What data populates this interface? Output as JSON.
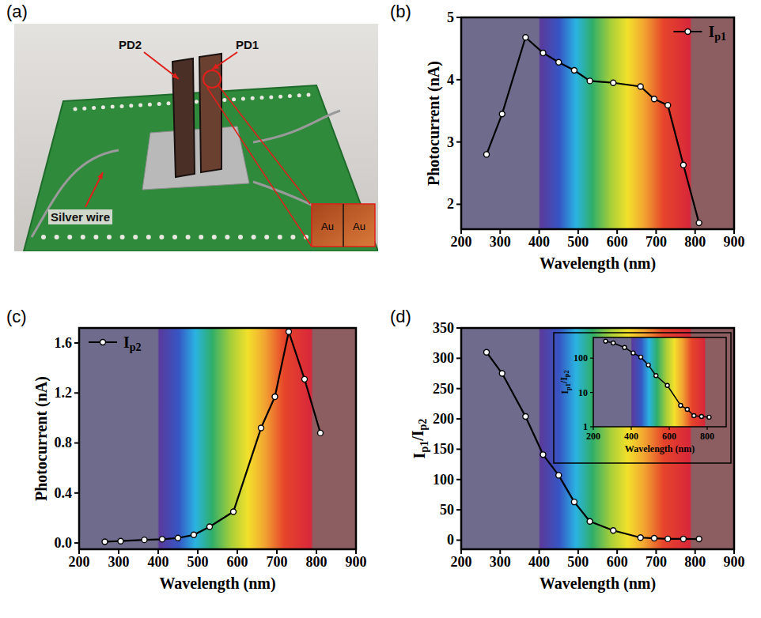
{
  "photo": {
    "panel_label": "(a)",
    "pd2": "PD2",
    "pd1": "PD1",
    "wire_label": "Silver wire",
    "inset_labels": [
      "Au",
      "Au"
    ]
  },
  "chart_data": [
    {
      "type": "line",
      "panel_label": "(b)",
      "x_label": "Wavelength (nm)",
      "y_label": "Photocurrent (nA)",
      "x": [
        265,
        305,
        365,
        410,
        450,
        490,
        530,
        590,
        660,
        695,
        730,
        770,
        810
      ],
      "series": [
        {
          "name": "Ip1",
          "color": "#000000",
          "marker": "circle",
          "values": [
            2.8,
            3.45,
            4.68,
            4.43,
            4.28,
            4.15,
            3.98,
            3.95,
            3.89,
            3.69,
            3.59,
            2.63,
            1.7
          ]
        }
      ],
      "xlim": [
        200,
        900
      ],
      "xticks": [
        200,
        300,
        400,
        500,
        600,
        700,
        800,
        900
      ],
      "ylim": [
        1.6,
        5
      ],
      "yticks": [
        2,
        3,
        4,
        5
      ],
      "grid": false,
      "legend": "upper right"
    },
    {
      "type": "line",
      "panel_label": "(c)",
      "x_label": "Wavelength (nm)",
      "y_label": "Photocurrent (nA)",
      "x": [
        265,
        305,
        365,
        410,
        450,
        490,
        530,
        590,
        660,
        695,
        730,
        770,
        810
      ],
      "series": [
        {
          "name": "Ip2",
          "color": "#000000",
          "marker": "circle",
          "values": [
            0.01,
            0.015,
            0.025,
            0.03,
            0.04,
            0.065,
            0.13,
            0.25,
            0.92,
            1.17,
            1.69,
            1.31,
            0.88
          ]
        }
      ],
      "xlim": [
        200,
        900
      ],
      "xticks": [
        200,
        300,
        400,
        500,
        600,
        700,
        800,
        900
      ],
      "ylim": [
        -0.05,
        1.72
      ],
      "yticks": [
        {
          "value": 0,
          "label": "0.0"
        },
        0.4,
        0.8,
        1.2,
        1.6
      ],
      "grid": false,
      "legend": "upper left"
    },
    {
      "type": "line",
      "panel_label": "(d)",
      "x_label": "Wavelength (nm)",
      "y_label": "Ip1/Ip2",
      "x": [
        265,
        305,
        365,
        410,
        450,
        490,
        530,
        590,
        660,
        695,
        730,
        770,
        810
      ],
      "series": [
        {
          "color": "#000000",
          "marker": "circle",
          "values": [
            310,
            275,
            204,
            141,
            107,
            63,
            31,
            16,
            4.2,
            3.2,
            2.1,
            2.0,
            1.9
          ]
        }
      ],
      "xlim": [
        200,
        900
      ],
      "xticks": [
        200,
        300,
        400,
        500,
        600,
        700,
        800,
        900
      ],
      "ylim": [
        -15,
        350
      ],
      "yticks": [
        0,
        50,
        100,
        150,
        200,
        250,
        300,
        350
      ],
      "grid": false
    },
    {
      "type": "line",
      "x_label": "Wavelength (nm)",
      "y_label": "Ip1/Ip2",
      "log": "y",
      "x": [
        265,
        305,
        365,
        410,
        450,
        490,
        530,
        590,
        660,
        695,
        730,
        770,
        810
      ],
      "series": [
        {
          "color": "#000000",
          "marker": "circle",
          "values": [
            310,
            275,
            204,
            141,
            107,
            63,
            31,
            16,
            4.2,
            3.2,
            2.1,
            2.0,
            1.9
          ]
        }
      ],
      "xlim": [
        200,
        900
      ],
      "xticks": [
        200,
        400,
        600,
        800
      ],
      "ylim": [
        1,
        400
      ],
      "yticks": [
        1,
        10,
        100
      ],
      "grid": false
    }
  ]
}
